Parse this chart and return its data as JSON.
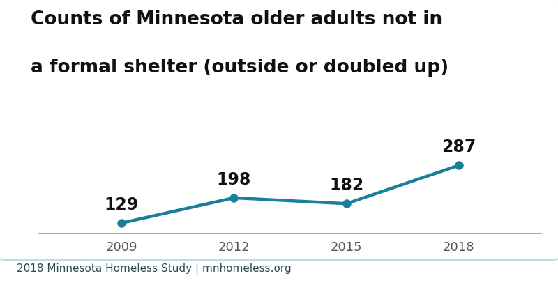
{
  "years": [
    2009,
    2012,
    2015,
    2018
  ],
  "values": [
    129,
    198,
    182,
    287
  ],
  "line_color": "#1a7f9c",
  "marker_color": "#1a7f9c",
  "title_line1": "Counts of Minnesota older adults not in",
  "title_line2": "a formal shelter (outside or doubled up)",
  "footnote": "2018 Minnesota Homeless Study | mnhomeless.org",
  "title_fontsize": 19,
  "label_fontsize": 17,
  "footnote_fontsize": 11,
  "tick_fontsize": 13,
  "background_color": "#ffffff",
  "border_color": "#b8dfe8",
  "ylim": [
    100,
    340
  ],
  "line_width": 3.2,
  "marker_size": 8
}
